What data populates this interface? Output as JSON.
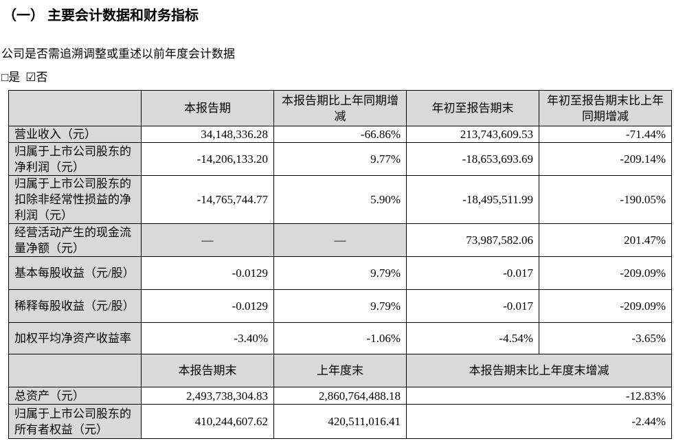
{
  "header": {
    "title": "（一） 主要会计数据和财务指标"
  },
  "question": "公司是否需追溯调整或重述以前年度会计数据",
  "options": [
    "□是",
    "☑否"
  ],
  "table": {
    "columns": [
      "本报告期",
      "本报告期比上年同期增减",
      "年初至报告期末",
      "年初至报告期末比上年同期增减"
    ],
    "rows": [
      [
        "营业收入（元）",
        "34,148,336.28",
        "-66.86%",
        "213,743,609.53",
        "-71.44%"
      ],
      [
        "归属于上市公司股东的净利润（元）",
        "-14,206,133.20",
        "9.77%",
        "-18,653,693.69",
        "-209.14%"
      ],
      [
        "归属于上市公司股东的扣除非经常性损益的净利润（元）",
        "-14,765,744.77",
        "5.90%",
        "-18,495,511.99",
        "-190.05%"
      ],
      [
        "经营活动产生的现金流量净额（元）",
        "—",
        "—",
        "73,987,582.06",
        "201.47%"
      ],
      [
        "基本每股收益（元/股）",
        "-0.0129",
        "9.79%",
        "-0.017",
        "-209.09%"
      ],
      [
        "稀释每股收益（元/股）",
        "-0.0129",
        "9.79%",
        "-0.017",
        "-209.09%"
      ],
      [
        "加权平均净资产收益率",
        "-3.40%",
        "-1.06%",
        "-4.54%",
        "-3.65%"
      ]
    ],
    "columns2": [
      "本报告期末",
      "上年度末",
      "本报告期末比上年度末增减"
    ],
    "rows2": [
      [
        "总资产（元）",
        "2,493,738,304.83",
        "2,860,764,488.18",
        "-12.83%"
      ],
      [
        "归属于上市公司股东的所有者权益（元）",
        "410,244,607.62",
        "420,511,016.41",
        "-2.44%"
      ]
    ]
  }
}
